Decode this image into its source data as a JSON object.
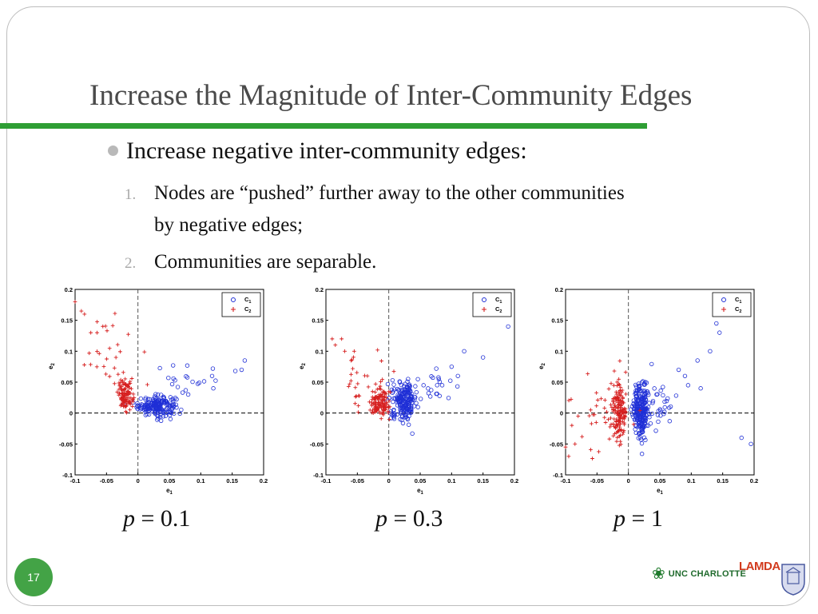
{
  "slide": {
    "title": "Increase the Magnitude of Inter-Community Edges",
    "bullet": "Increase negative inter-community edges:",
    "items": [
      {
        "num": "1.",
        "lines": [
          "Nodes are “pushed” further away to the other communities",
          "by negative edges;"
        ]
      },
      {
        "num": "2.",
        "lines": [
          "Communities are separable."
        ]
      }
    ],
    "page_number": "17",
    "logos": {
      "unc_text": "UNC CHARLOTTE",
      "lamda_text": "LAMDA"
    },
    "colors": {
      "accent": "#2e9e34",
      "c1": "#1f2fd6",
      "c2": "#d61f1f"
    }
  },
  "chart_data": [
    {
      "type": "scatter",
      "caption": {
        "var": "p",
        "value": "= 0.1"
      },
      "xlabel": "e1",
      "ylabel": "e2",
      "xlim": [
        -0.1,
        0.2
      ],
      "ylim": [
        -0.1,
        0.2
      ],
      "xticks": [
        "-0.1",
        "-0.05",
        "0",
        "0.05",
        "0.1",
        "0.15",
        "0.2"
      ],
      "yticks": [
        "-0.1",
        "-0.05",
        "0",
        "0.05",
        "0.1",
        "0.15",
        "0.2"
      ],
      "legend": [
        "C1",
        "C2"
      ],
      "legend_position": "top-right",
      "series": [
        {
          "name": "C1",
          "marker": "circle",
          "clusters": [
            {
              "cx": 0.03,
              "cy": 0.012,
              "sx": 0.015,
              "sy": 0.008,
              "n": 190
            },
            {
              "cx": 0.09,
              "cy": 0.05,
              "sx": 0.03,
              "sy": 0.015,
              "n": 18
            }
          ],
          "points": [
            [
              0.165,
              0.07
            ],
            [
              0.17,
              0.085
            ],
            [
              0.155,
              0.068
            ],
            [
              0.118,
              0.06
            ],
            [
              0.12,
              0.04
            ],
            [
              0.08,
              0.03
            ]
          ]
        },
        {
          "name": "C2",
          "marker": "plus",
          "clusters": [
            {
              "cx": -0.02,
              "cy": 0.03,
              "sx": 0.006,
              "sy": 0.012,
              "n": 120
            },
            {
              "cx": -0.045,
              "cy": 0.1,
              "sx": 0.02,
              "sy": 0.03,
              "n": 25
            }
          ],
          "points": [
            [
              -0.1,
              0.18
            ],
            [
              -0.085,
              0.16
            ],
            [
              -0.075,
              0.13
            ],
            [
              -0.065,
              0.13
            ],
            [
              -0.09,
              0.165
            ],
            [
              -0.035,
              0.09
            ]
          ]
        }
      ]
    },
    {
      "type": "scatter",
      "caption": {
        "var": "p",
        "value": "= 0.3"
      },
      "xlabel": "e1",
      "ylabel": "e2",
      "xlim": [
        -0.1,
        0.2
      ],
      "ylim": [
        -0.1,
        0.2
      ],
      "xticks": [
        "-0.1",
        "-0.05",
        "0",
        "0.05",
        "0.1",
        "0.15",
        "0.2"
      ],
      "yticks": [
        "-0.1",
        "-0.05",
        "0",
        "0.05",
        "0.1",
        "0.15",
        "0.2"
      ],
      "legend": [
        "C1",
        "C2"
      ],
      "legend_position": "top-right",
      "series": [
        {
          "name": "C1",
          "marker": "circle",
          "clusters": [
            {
              "cx": 0.025,
              "cy": 0.02,
              "sx": 0.01,
              "sy": 0.015,
              "n": 200
            },
            {
              "cx": 0.06,
              "cy": 0.045,
              "sx": 0.02,
              "sy": 0.015,
              "n": 20
            }
          ],
          "points": [
            [
              0.19,
              0.14
            ],
            [
              0.15,
              0.09
            ],
            [
              0.12,
              0.1
            ],
            [
              0.11,
              0.06
            ],
            [
              0.1,
              0.075
            ],
            [
              0.085,
              0.045
            ]
          ]
        },
        {
          "name": "C2",
          "marker": "plus",
          "clusters": [
            {
              "cx": -0.015,
              "cy": 0.015,
              "sx": 0.008,
              "sy": 0.012,
              "n": 120
            },
            {
              "cx": -0.04,
              "cy": 0.05,
              "sx": 0.02,
              "sy": 0.03,
              "n": 30
            }
          ],
          "points": [
            [
              -0.09,
              0.12
            ],
            [
              -0.085,
              0.11
            ],
            [
              -0.075,
              0.12
            ],
            [
              -0.07,
              0.1
            ],
            [
              -0.055,
              0.1
            ],
            [
              -0.06,
              0.085
            ]
          ]
        }
      ]
    },
    {
      "type": "scatter",
      "caption": {
        "var": "p",
        "value": "= 1"
      },
      "xlabel": "e1",
      "ylabel": "e2",
      "xlim": [
        -0.1,
        0.2
      ],
      "ylim": [
        -0.1,
        0.2
      ],
      "xticks": [
        "-0.1",
        "-0.05",
        "0",
        "0.05",
        "0.1",
        "0.15",
        "0.2"
      ],
      "yticks": [
        "-0.1",
        "-0.05",
        "0",
        "0.05",
        "0.1",
        "0.15",
        "0.2"
      ],
      "legend": [
        "C1",
        "C2"
      ],
      "legend_position": "top-right",
      "series": [
        {
          "name": "C1",
          "marker": "circle",
          "clusters": [
            {
              "cx": 0.02,
              "cy": 0.005,
              "sx": 0.006,
              "sy": 0.022,
              "n": 220
            },
            {
              "cx": 0.045,
              "cy": 0.01,
              "sx": 0.015,
              "sy": 0.02,
              "n": 40
            }
          ],
          "points": [
            [
              0.14,
              0.145
            ],
            [
              0.145,
              0.13
            ],
            [
              0.13,
              0.1
            ],
            [
              0.11,
              0.085
            ],
            [
              0.09,
              0.06
            ],
            [
              0.095,
              0.045
            ],
            [
              0.115,
              0.04
            ],
            [
              0.18,
              -0.04
            ],
            [
              0.195,
              -0.05
            ],
            [
              0.08,
              0.07
            ]
          ]
        },
        {
          "name": "C2",
          "marker": "plus",
          "clusters": [
            {
              "cx": -0.015,
              "cy": 0.005,
              "sx": 0.006,
              "sy": 0.025,
              "n": 150
            },
            {
              "cx": -0.04,
              "cy": 0.0,
              "sx": 0.02,
              "sy": 0.03,
              "n": 30
            }
          ],
          "points": [
            [
              -0.1,
              -0.055
            ],
            [
              -0.095,
              -0.07
            ],
            [
              -0.085,
              -0.05
            ],
            [
              -0.08,
              -0.005
            ],
            [
              -0.09,
              -0.02
            ],
            [
              -0.06,
              0.005
            ]
          ]
        }
      ]
    }
  ]
}
